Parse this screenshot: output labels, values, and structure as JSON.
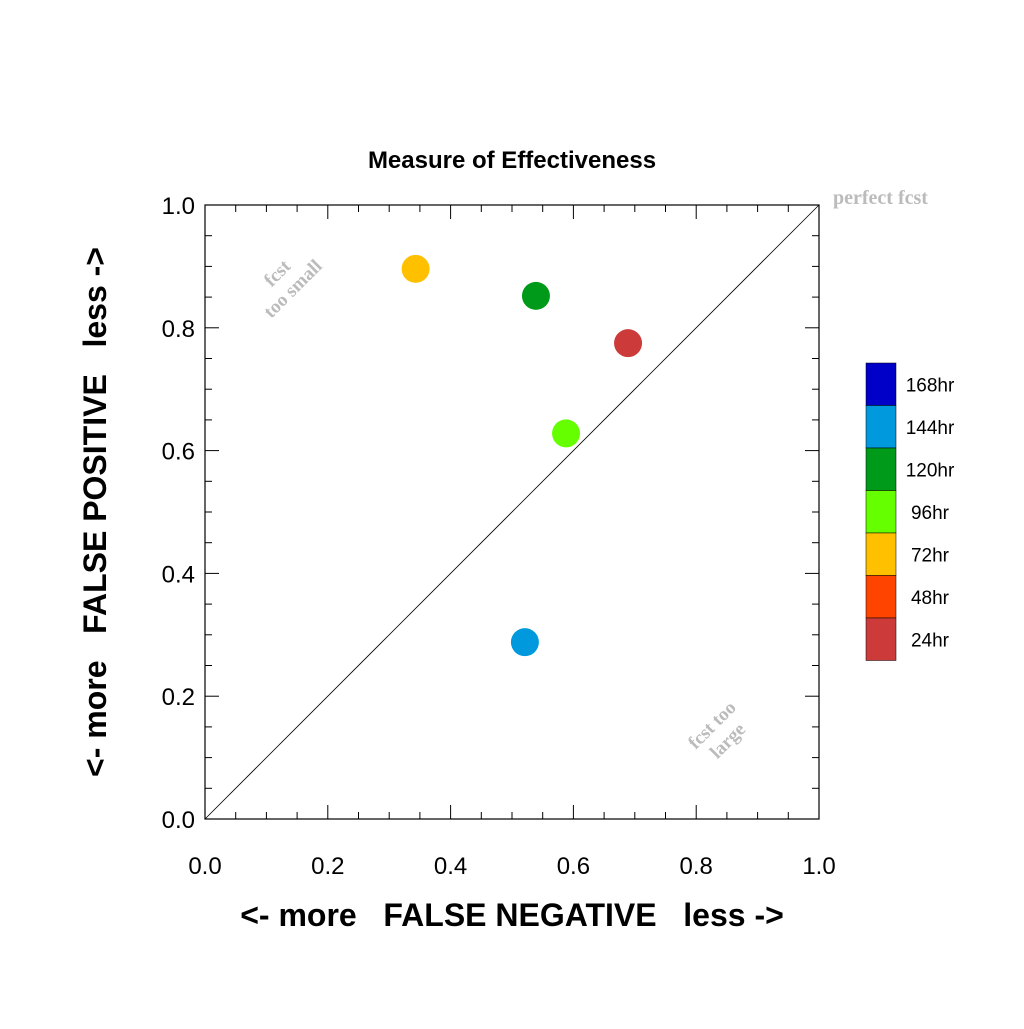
{
  "chart_data": {
    "type": "scatter",
    "title": "Measure of Effectiveness",
    "xlabel": "<- more   FALSE NEGATIVE   less ->",
    "ylabel": "<- more   FALSE POSITIVE   less ->",
    "xlim": [
      0,
      1
    ],
    "ylim": [
      0,
      1
    ],
    "x_ticks": [
      "0.0",
      "0.2",
      "0.4",
      "0.6",
      "0.8",
      "1.0"
    ],
    "y_ticks": [
      "0.0",
      "0.2",
      "0.4",
      "0.6",
      "0.8",
      "1.0"
    ],
    "grid": false,
    "diagonal_line": true,
    "annotations": {
      "perfect": "perfect fcst",
      "small_line1": "fcst",
      "small_line2": "too small",
      "large_line1": "fcst too",
      "large_line2": "large"
    },
    "annotation_color": "#bbbbbb",
    "points": [
      {
        "label": "72hr",
        "x": 0.343,
        "y": 0.896,
        "color": "#ffc000"
      },
      {
        "label": "120hr",
        "x": 0.539,
        "y": 0.852,
        "color": "#009a1a"
      },
      {
        "label": "24hr",
        "x": 0.689,
        "y": 0.775,
        "color": "#cc3a3a"
      },
      {
        "label": "96hr",
        "x": 0.588,
        "y": 0.628,
        "color": "#66ff00"
      },
      {
        "label": "144hr",
        "x": 0.521,
        "y": 0.288,
        "color": "#0099dd"
      }
    ],
    "legend_position": "right",
    "legend": [
      {
        "label": "168hr",
        "color": "#0000c8"
      },
      {
        "label": "144hr",
        "color": "#0099dd"
      },
      {
        "label": "120hr",
        "color": "#009a1a"
      },
      {
        "label": "96hr",
        "color": "#66ff00"
      },
      {
        "label": "72hr",
        "color": "#ffc000"
      },
      {
        "label": "48hr",
        "color": "#ff4400"
      },
      {
        "label": "24hr",
        "color": "#cc3a3a"
      }
    ]
  }
}
